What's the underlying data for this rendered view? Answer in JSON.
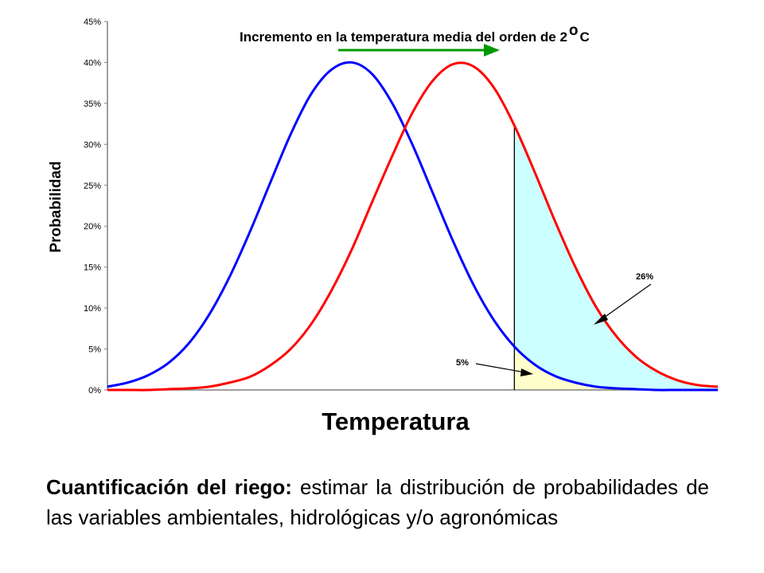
{
  "chart_data": {
    "type": "line",
    "title": "Incremento en la temperatura media del orden de 2",
    "title_degree": "o",
    "title_unit": "C",
    "ylabel": "Probabilidad",
    "xlabel": "Temperatura",
    "ylim": [
      0,
      45
    ],
    "y_ticks": [
      "0%",
      "5%",
      "10%",
      "15%",
      "20%",
      "25%",
      "30%",
      "35%",
      "40%",
      "45%"
    ],
    "grid": false,
    "x": [
      0,
      0.5,
      1,
      1.5,
      2,
      2.5,
      3,
      3.5,
      4,
      4.5,
      5,
      5.5,
      6,
      6.5,
      7,
      7.5,
      8,
      8.5,
      9,
      9.5,
      10,
      10.5,
      11,
      11.5,
      12,
      12.5,
      13,
      13.5,
      14,
      14.5,
      15
    ],
    "series": [
      {
        "color": "#0000ff",
        "values": [
          0.4,
          0.9,
          1.8,
          3.3,
          5.7,
          9.2,
          13.8,
          19.3,
          25.3,
          31.2,
          36.1,
          39.1,
          40.0,
          38.6,
          35.0,
          29.9,
          24.0,
          18.1,
          12.8,
          8.5,
          5.3,
          3.1,
          1.7,
          0.9,
          0.4,
          0.2,
          0.1,
          0.0,
          0.0,
          0.0,
          0.0
        ]
      },
      {
        "color": "#ff0000",
        "values": [
          0.0,
          0.0,
          0.0,
          0.1,
          0.2,
          0.4,
          0.9,
          1.6,
          3.0,
          5.0,
          8.0,
          12.1,
          17.1,
          22.9,
          28.6,
          33.9,
          37.8,
          39.8,
          39.5,
          36.9,
          32.3,
          26.6,
          20.6,
          15.0,
          10.2,
          6.6,
          4.0,
          2.3,
          1.2,
          0.6,
          0.4
        ]
      }
    ],
    "threshold_x": 10,
    "shaded_regions": [
      {
        "label": "26%",
        "color": "#ccffff"
      },
      {
        "label": "5%",
        "color": "#ffffcc"
      }
    ],
    "arrow_color": "#009900"
  },
  "caption": {
    "bold": "Cuantificación del riego:",
    "text": " estimar la distribución de probabilidades de las variables ambientales, hidrológicas y/o agronómicas"
  }
}
